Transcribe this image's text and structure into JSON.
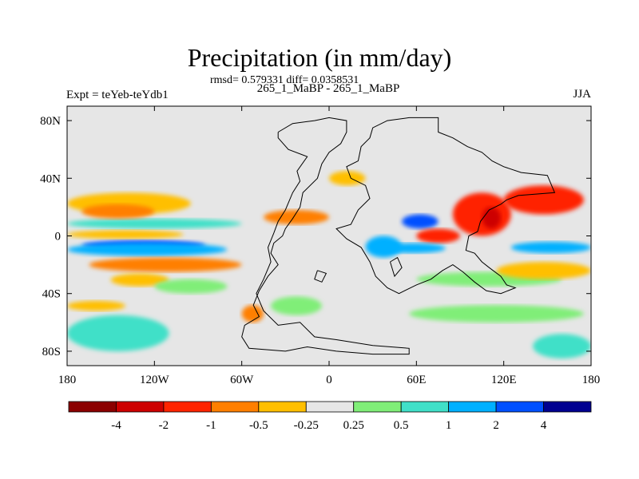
{
  "header": {
    "title": "Precipitation (in mm/day)",
    "stats": "rmsd= 0.579331 diff= 0.0358531",
    "left_label": "Expt = teYeb-teYdb1",
    "center_label": "265_1_MaBP - 265_1_MaBP",
    "right_label": "JJA"
  },
  "chart_data": {
    "type": "heatmap",
    "title": "Precipitation (in mm/day)",
    "projection": "cylindrical equidistant",
    "xlim": [
      -180,
      180
    ],
    "ylim": [
      -90,
      90
    ],
    "x_ticks": [
      {
        "value": -180,
        "label": "180"
      },
      {
        "value": -120,
        "label": "120W"
      },
      {
        "value": -60,
        "label": "60W"
      },
      {
        "value": 0,
        "label": "0"
      },
      {
        "value": 60,
        "label": "60E"
      },
      {
        "value": 120,
        "label": "120E"
      },
      {
        "value": 180,
        "label": "180"
      }
    ],
    "y_ticks": [
      {
        "value": 80,
        "label": "80N"
      },
      {
        "value": 40,
        "label": "40N"
      },
      {
        "value": 0,
        "label": "0"
      },
      {
        "value": -40,
        "label": "40S"
      },
      {
        "value": -80,
        "label": "80S"
      }
    ],
    "colorbar": {
      "boundaries": [
        -4,
        -2,
        -1,
        -0.5,
        -0.25,
        0.25,
        0.5,
        1,
        2,
        4
      ],
      "labels": [
        "-4",
        "-2",
        "-1",
        "-0.5",
        "-0.25",
        "0.25",
        "0.5",
        "1",
        "2",
        "4"
      ],
      "colors": [
        "#8b0000",
        "#cd0000",
        "#ff2400",
        "#ff7f00",
        "#ffbf00",
        "#e6e6e6",
        "#80ee78",
        "#40e0c8",
        "#00b0ff",
        "#0050ff",
        "#000090"
      ]
    },
    "regions": [
      {
        "name": "n-pacific-dry-band",
        "lon": [
          -180,
          -95
        ],
        "lat": [
          15,
          30
        ],
        "value": -0.4
      },
      {
        "name": "n-pacific-wet-band",
        "lon": [
          -180,
          -60
        ],
        "lat": [
          5,
          12
        ],
        "value": 0.6
      },
      {
        "name": "n-pacific-dry-strong",
        "lon": [
          -170,
          -120
        ],
        "lat": [
          12,
          22
        ],
        "value": -0.8
      },
      {
        "name": "itcz-dry-north",
        "lon": [
          -180,
          -100
        ],
        "lat": [
          -2,
          4
        ],
        "value": -0.4
      },
      {
        "name": "equatorial-pacific-wet",
        "lon": [
          -170,
          -85
        ],
        "lat": [
          -10,
          -3
        ],
        "value": 2.5
      },
      {
        "name": "equatorial-pacific-moderate-wet",
        "lon": [
          -180,
          -70
        ],
        "lat": [
          -14,
          -5
        ],
        "value": 1.4
      },
      {
        "name": "s-pacific-dry-1",
        "lon": [
          -165,
          -60
        ],
        "lat": [
          -25,
          -15
        ],
        "value": -0.8
      },
      {
        "name": "s-pacific-dry-2",
        "lon": [
          -150,
          -110
        ],
        "lat": [
          -35,
          -26
        ],
        "value": -0.4
      },
      {
        "name": "s-pacific-wet",
        "lon": [
          -120,
          -70
        ],
        "lat": [
          -40,
          -30
        ],
        "value": 0.4
      },
      {
        "name": "southern-ocean-wet-west",
        "lon": [
          -180,
          -110
        ],
        "lat": [
          -80,
          -55
        ],
        "value": 0.8
      },
      {
        "name": "southern-ocean-dry-west",
        "lon": [
          -180,
          -140
        ],
        "lat": [
          -52,
          -45
        ],
        "value": -0.4
      },
      {
        "name": "atlantic-dry",
        "lon": [
          -45,
          0
        ],
        "lat": [
          8,
          18
        ],
        "value": -0.8
      },
      {
        "name": "n-atlantic-dry",
        "lon": [
          0,
          25
        ],
        "lat": [
          35,
          45
        ],
        "value": -0.4
      },
      {
        "name": "s-atlantic-wet",
        "lon": [
          -40,
          -5
        ],
        "lat": [
          -55,
          -42
        ],
        "value": 0.4
      },
      {
        "name": "atlantic-dry-south",
        "lon": [
          -60,
          -45
        ],
        "lat": [
          -60,
          -48
        ],
        "value": -0.8
      },
      {
        "name": "africa-wet",
        "lon": [
          25,
          50
        ],
        "lat": [
          -15,
          0
        ],
        "value": 1.5
      },
      {
        "name": "indian-ocean-wet",
        "lon": [
          50,
          75
        ],
        "lat": [
          5,
          15
        ],
        "value": 3.0
      },
      {
        "name": "arabian-sea-dry",
        "lon": [
          60,
          90
        ],
        "lat": [
          -5,
          5
        ],
        "value": -1.5
      },
      {
        "name": "central-indian-wet",
        "lon": [
          35,
          80
        ],
        "lat": [
          -12,
          -5
        ],
        "value": 1.2
      },
      {
        "name": "south-asia-dry",
        "lon": [
          85,
          125
        ],
        "lat": [
          0,
          30
        ],
        "value": -1.8
      },
      {
        "name": "tibet-dry-strong",
        "lon": [
          105,
          118
        ],
        "lat": [
          5,
          20
        ],
        "value": -3.0
      },
      {
        "name": "nw-pacific-dry",
        "lon": [
          120,
          175
        ],
        "lat": [
          15,
          35
        ],
        "value": -1.2
      },
      {
        "name": "maritime-wet",
        "lon": [
          125,
          180
        ],
        "lat": [
          -12,
          -4
        ],
        "value": 1.1
      },
      {
        "name": "s-indian-wet",
        "lon": [
          60,
          160
        ],
        "lat": [
          -35,
          -25
        ],
        "value": 0.4
      },
      {
        "name": "s-indian-dry",
        "lon": [
          115,
          180
        ],
        "lat": [
          -30,
          -18
        ],
        "value": -0.4
      },
      {
        "name": "southern-ocean-wet-east",
        "lon": [
          55,
          175
        ],
        "lat": [
          -60,
          -48
        ],
        "value": 0.4
      },
      {
        "name": "antarctic-coast-wet",
        "lon": [
          140,
          180
        ],
        "lat": [
          -85,
          -68
        ],
        "value": 0.8
      }
    ],
    "coastlines": [
      {
        "name": "americas-europe-africa",
        "points": [
          [
            -35,
            72
          ],
          [
            -25,
            78
          ],
          [
            -10,
            80
          ],
          [
            0,
            82
          ],
          [
            12,
            80
          ],
          [
            12,
            72
          ],
          [
            8,
            64
          ],
          [
            0,
            58
          ],
          [
            -5,
            50
          ],
          [
            -8,
            40
          ],
          [
            -18,
            30
          ],
          [
            -20,
            20
          ],
          [
            -25,
            12
          ],
          [
            -30,
            5
          ],
          [
            -32,
            0
          ],
          [
            -38,
            -5
          ],
          [
            -40,
            -12
          ],
          [
            -35,
            -20
          ],
          [
            -42,
            -28
          ],
          [
            -48,
            -38
          ],
          [
            -52,
            -48
          ],
          [
            -48,
            -56
          ],
          [
            -58,
            -62
          ],
          [
            -60,
            -70
          ],
          [
            -55,
            -78
          ],
          [
            -30,
            -80
          ],
          [
            -15,
            -77
          ],
          [
            5,
            -80
          ],
          [
            30,
            -82
          ],
          [
            55,
            -82
          ],
          [
            55,
            -78
          ],
          [
            30,
            -76
          ],
          [
            5,
            -72
          ],
          [
            -10,
            -70
          ],
          [
            -20,
            -60
          ],
          [
            -35,
            -62
          ],
          [
            -45,
            -52
          ],
          [
            -50,
            -40
          ],
          [
            -45,
            -30
          ],
          [
            -40,
            -18
          ],
          [
            -42,
            -8
          ],
          [
            -38,
            2
          ],
          [
            -35,
            10
          ],
          [
            -30,
            18
          ],
          [
            -25,
            30
          ],
          [
            -20,
            38
          ],
          [
            -22,
            45
          ],
          [
            -15,
            55
          ],
          [
            -28,
            60
          ],
          [
            -35,
            68
          ],
          [
            -35,
            72
          ]
        ]
      },
      {
        "name": "eurasia-africa",
        "points": [
          [
            20,
            52
          ],
          [
            22,
            62
          ],
          [
            28,
            68
          ],
          [
            30,
            75
          ],
          [
            40,
            80
          ],
          [
            55,
            82
          ],
          [
            75,
            82
          ],
          [
            75,
            72
          ],
          [
            85,
            68
          ],
          [
            95,
            62
          ],
          [
            105,
            58
          ],
          [
            112,
            52
          ],
          [
            120,
            48
          ],
          [
            132,
            44
          ],
          [
            150,
            42
          ],
          [
            155,
            30
          ],
          [
            130,
            28
          ],
          [
            122,
            25
          ],
          [
            118,
            22
          ],
          [
            110,
            18
          ],
          [
            104,
            10
          ],
          [
            102,
            3
          ],
          [
            96,
            0
          ],
          [
            94,
            -10
          ],
          [
            100,
            -12
          ],
          [
            105,
            -18
          ],
          [
            110,
            -22
          ],
          [
            118,
            -28
          ],
          [
            122,
            -34
          ],
          [
            128,
            -36
          ],
          [
            118,
            -40
          ],
          [
            108,
            -38
          ],
          [
            100,
            -32
          ],
          [
            92,
            -25
          ],
          [
            85,
            -20
          ],
          [
            78,
            -24
          ],
          [
            70,
            -30
          ],
          [
            60,
            -34
          ],
          [
            48,
            -40
          ],
          [
            40,
            -36
          ],
          [
            32,
            -28
          ],
          [
            28,
            -18
          ],
          [
            22,
            -8
          ],
          [
            12,
            -2
          ],
          [
            5,
            5
          ],
          [
            15,
            8
          ],
          [
            20,
            18
          ],
          [
            28,
            26
          ],
          [
            25,
            35
          ],
          [
            15,
            40
          ],
          [
            12,
            48
          ],
          [
            20,
            52
          ]
        ]
      },
      {
        "name": "s-america-east-island",
        "points": [
          [
            -8,
            -24
          ],
          [
            -2,
            -26
          ],
          [
            -5,
            -32
          ],
          [
            -10,
            -30
          ],
          [
            -8,
            -24
          ]
        ]
      },
      {
        "name": "madagascar",
        "points": [
          [
            42,
            -18
          ],
          [
            47,
            -15
          ],
          [
            50,
            -22
          ],
          [
            45,
            -28
          ],
          [
            42,
            -18
          ]
        ]
      }
    ]
  }
}
